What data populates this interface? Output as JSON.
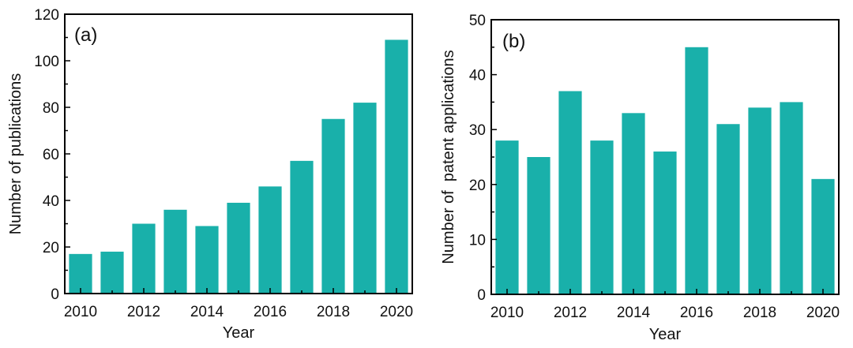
{
  "colors": {
    "bar": "#19b0aa",
    "axis": "#000000",
    "background": "#ffffff"
  },
  "chart_data": [
    {
      "type": "bar",
      "panel_label": "(a)",
      "title": "",
      "xlabel": "Year",
      "ylabel": "Number of publications",
      "categories": [
        "2010",
        "2011",
        "2012",
        "2013",
        "2014",
        "2015",
        "2016",
        "2017",
        "2018",
        "2019",
        "2020"
      ],
      "values": [
        17,
        18,
        30,
        36,
        29,
        39,
        46,
        57,
        75,
        82,
        109
      ],
      "ylim": [
        0,
        120
      ],
      "yticks": [
        "0",
        "20",
        "40",
        "60",
        "80",
        "100",
        "120"
      ],
      "xtick_labels": [
        "2010",
        "2012",
        "2014",
        "2016",
        "2018",
        "2020"
      ],
      "grid": false,
      "legend": "none"
    },
    {
      "type": "bar",
      "panel_label": "(b)",
      "title": "",
      "xlabel": "Year",
      "ylabel": "Number of  patent applications",
      "categories": [
        "2010",
        "2011",
        "2012",
        "2013",
        "2014",
        "2015",
        "2016",
        "2017",
        "2018",
        "2019",
        "2020"
      ],
      "values": [
        28,
        25,
        37,
        28,
        33,
        26,
        45,
        31,
        34,
        35,
        21
      ],
      "ylim": [
        0,
        50
      ],
      "yticks": [
        "0",
        "10",
        "20",
        "30",
        "40",
        "50"
      ],
      "xtick_labels": [
        "2010",
        "2012",
        "2014",
        "2016",
        "2018",
        "2020"
      ],
      "grid": false,
      "legend": "none"
    }
  ]
}
